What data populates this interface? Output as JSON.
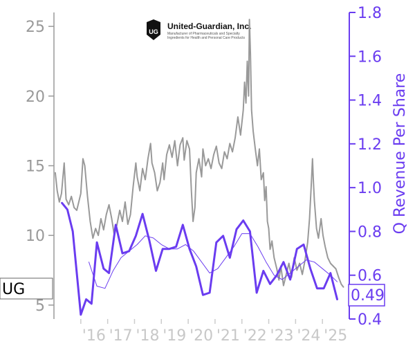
{
  "logo": {
    "company": "United-Guardian, Inc.",
    "tagline_1": "Manufacturer of Pharmaceuticals and Specialty",
    "tagline_2": "Ingredients for Health and Personal Care Products",
    "mark_text": "UG"
  },
  "ticker": "UG",
  "latest_value_label": "0.49",
  "colors": {
    "price": "#999999",
    "revenue": "#6a3cf0",
    "left_axis": "#999999",
    "right_axis": "#6a3cf0",
    "x_axis_labels": "#c8c8c8"
  },
  "chart_data": {
    "type": "line",
    "grid": false,
    "x_tick_labels": [
      "'16",
      "'17",
      "'18",
      "'19",
      "'20",
      "'21",
      "'22",
      "'23",
      "'24",
      "'25"
    ],
    "x_ticks_years": [
      2016,
      2017,
      2018,
      2019,
      2020,
      2021,
      2022,
      2023,
      2024,
      2025
    ],
    "xlim": [
      2015.0,
      2026.0
    ],
    "left_axis": {
      "label": "",
      "ticks": [
        5,
        10,
        15,
        20,
        25
      ],
      "ylim": [
        4.0,
        26.0
      ]
    },
    "right_axis": {
      "label": "Q Revenue Per Share",
      "ticks": [
        0.4,
        0.6,
        0.8,
        1.0,
        1.2,
        1.4,
        1.6,
        1.8
      ],
      "ylim": [
        0.4,
        1.8
      ]
    },
    "series": [
      {
        "axis": "left",
        "style": "price",
        "points": [
          [
            2015.05,
            14.5
          ],
          [
            2015.12,
            13.2
          ],
          [
            2015.2,
            12.4
          ],
          [
            2015.28,
            13.0
          ],
          [
            2015.38,
            15.2
          ],
          [
            2015.45,
            12.6
          ],
          [
            2015.55,
            12.2
          ],
          [
            2015.65,
            12.8
          ],
          [
            2015.75,
            12.0
          ],
          [
            2015.85,
            11.8
          ],
          [
            2016.0,
            13.0
          ],
          [
            2016.08,
            15.5
          ],
          [
            2016.15,
            15.0
          ],
          [
            2016.25,
            12.8
          ],
          [
            2016.35,
            11.0
          ],
          [
            2016.45,
            9.8
          ],
          [
            2016.55,
            10.5
          ],
          [
            2016.65,
            10.0
          ],
          [
            2016.75,
            11.2
          ],
          [
            2016.85,
            10.4
          ],
          [
            2016.95,
            11.5
          ],
          [
            2017.05,
            12.2
          ],
          [
            2017.15,
            11.2
          ],
          [
            2017.25,
            10.0
          ],
          [
            2017.35,
            10.8
          ],
          [
            2017.45,
            11.8
          ],
          [
            2017.55,
            11.0
          ],
          [
            2017.65,
            12.4
          ],
          [
            2017.75,
            10.8
          ],
          [
            2017.85,
            11.5
          ],
          [
            2017.95,
            13.5
          ],
          [
            2018.05,
            15.2
          ],
          [
            2018.1,
            14.2
          ],
          [
            2018.2,
            13.2
          ],
          [
            2018.3,
            14.8
          ],
          [
            2018.4,
            14.0
          ],
          [
            2018.5,
            15.5
          ],
          [
            2018.6,
            16.6
          ],
          [
            2018.65,
            15.2
          ],
          [
            2018.75,
            14.5
          ],
          [
            2018.85,
            13.2
          ],
          [
            2018.95,
            13.8
          ],
          [
            2019.05,
            15.2
          ],
          [
            2019.1,
            14.0
          ],
          [
            2019.2,
            15.8
          ],
          [
            2019.3,
            16.5
          ],
          [
            2019.4,
            15.6
          ],
          [
            2019.5,
            16.8
          ],
          [
            2019.6,
            15.0
          ],
          [
            2019.7,
            16.5
          ],
          [
            2019.8,
            17.0
          ],
          [
            2019.85,
            15.4
          ],
          [
            2019.95,
            16.8
          ],
          [
            2020.05,
            16.2
          ],
          [
            2020.12,
            13.2
          ],
          [
            2020.18,
            11.0
          ],
          [
            2020.25,
            12.0
          ],
          [
            2020.3,
            14.5
          ],
          [
            2020.4,
            15.5
          ],
          [
            2020.5,
            14.2
          ],
          [
            2020.55,
            16.2
          ],
          [
            2020.65,
            15.0
          ],
          [
            2020.75,
            15.5
          ],
          [
            2020.85,
            14.8
          ],
          [
            2020.95,
            15.8
          ],
          [
            2021.05,
            16.4
          ],
          [
            2021.15,
            15.2
          ],
          [
            2021.25,
            14.8
          ],
          [
            2021.35,
            16.0
          ],
          [
            2021.45,
            15.5
          ],
          [
            2021.55,
            16.6
          ],
          [
            2021.65,
            16.0
          ],
          [
            2021.75,
            17.0
          ],
          [
            2021.85,
            18.5
          ],
          [
            2021.95,
            17.2
          ],
          [
            2022.05,
            19.0
          ],
          [
            2022.1,
            21.0
          ],
          [
            2022.15,
            19.5
          ],
          [
            2022.2,
            22.5
          ],
          [
            2022.25,
            20.0
          ],
          [
            2022.28,
            25.5
          ],
          [
            2022.32,
            23.0
          ],
          [
            2022.36,
            19.0
          ],
          [
            2022.42,
            17.5
          ],
          [
            2022.5,
            16.2
          ],
          [
            2022.58,
            15.0
          ],
          [
            2022.65,
            16.2
          ],
          [
            2022.72,
            14.0
          ],
          [
            2022.8,
            14.5
          ],
          [
            2022.85,
            12.5
          ],
          [
            2022.9,
            13.5
          ],
          [
            2022.95,
            11.0
          ],
          [
            2023.0,
            10.5
          ],
          [
            2023.05,
            9.0
          ],
          [
            2023.12,
            9.6
          ],
          [
            2023.2,
            8.4
          ],
          [
            2023.3,
            7.6
          ],
          [
            2023.38,
            6.8
          ],
          [
            2023.45,
            7.8
          ],
          [
            2023.55,
            6.4
          ],
          [
            2023.65,
            7.2
          ],
          [
            2023.75,
            8.0
          ],
          [
            2023.85,
            7.0
          ],
          [
            2023.95,
            8.4
          ],
          [
            2024.05,
            7.5
          ],
          [
            2024.15,
            8.0
          ],
          [
            2024.25,
            7.2
          ],
          [
            2024.35,
            8.2
          ],
          [
            2024.45,
            9.5
          ],
          [
            2024.52,
            11.2
          ],
          [
            2024.58,
            13.5
          ],
          [
            2024.63,
            15.5
          ],
          [
            2024.66,
            14.0
          ],
          [
            2024.7,
            12.5
          ],
          [
            2024.78,
            10.5
          ],
          [
            2024.85,
            9.8
          ],
          [
            2024.95,
            11.2
          ],
          [
            2025.02,
            10.0
          ],
          [
            2025.1,
            9.2
          ],
          [
            2025.2,
            8.4
          ],
          [
            2025.3,
            8.0
          ],
          [
            2025.4,
            7.8
          ],
          [
            2025.5,
            7.6
          ],
          [
            2025.6,
            7.0
          ],
          [
            2025.7,
            6.5
          ],
          [
            2025.78,
            6.3
          ]
        ]
      },
      {
        "axis": "right",
        "style": "revenue",
        "points": [
          [
            2015.3,
            0.93
          ],
          [
            2015.5,
            0.9
          ],
          [
            2015.7,
            0.8
          ],
          [
            2016.0,
            0.42
          ],
          [
            2016.2,
            0.49
          ],
          [
            2016.4,
            0.47
          ],
          [
            2016.6,
            0.75
          ],
          [
            2016.85,
            0.63
          ],
          [
            2017.05,
            0.61
          ],
          [
            2017.3,
            0.83
          ],
          [
            2017.55,
            0.7
          ],
          [
            2017.8,
            0.71
          ],
          [
            2018.05,
            0.78
          ],
          [
            2018.3,
            0.88
          ],
          [
            2018.55,
            0.76
          ],
          [
            2018.8,
            0.62
          ],
          [
            2019.05,
            0.72
          ],
          [
            2019.3,
            0.72
          ],
          [
            2019.55,
            0.73
          ],
          [
            2019.8,
            0.83
          ],
          [
            2020.05,
            0.72
          ],
          [
            2020.3,
            0.64
          ],
          [
            2020.55,
            0.51
          ],
          [
            2020.8,
            0.52
          ],
          [
            2021.05,
            0.75
          ],
          [
            2021.3,
            0.78
          ],
          [
            2021.55,
            0.68
          ],
          [
            2021.8,
            0.81
          ],
          [
            2022.05,
            0.85
          ],
          [
            2022.3,
            0.8
          ],
          [
            2022.55,
            0.52
          ],
          [
            2022.8,
            0.62
          ],
          [
            2023.05,
            0.56
          ],
          [
            2023.3,
            0.6
          ],
          [
            2023.55,
            0.66
          ],
          [
            2023.8,
            0.58
          ],
          [
            2024.05,
            0.72
          ],
          [
            2024.3,
            0.74
          ],
          [
            2024.55,
            0.63
          ],
          [
            2024.8,
            0.54
          ],
          [
            2025.05,
            0.54
          ],
          [
            2025.3,
            0.61
          ],
          [
            2025.55,
            0.49
          ]
        ]
      },
      {
        "axis": "right",
        "style": "revenue-average",
        "points": [
          [
            2016.3,
            0.66
          ],
          [
            2016.6,
            0.55
          ],
          [
            2016.9,
            0.54
          ],
          [
            2017.2,
            0.62
          ],
          [
            2017.5,
            0.68
          ],
          [
            2017.8,
            0.71
          ],
          [
            2018.1,
            0.74
          ],
          [
            2018.4,
            0.78
          ],
          [
            2018.7,
            0.77
          ],
          [
            2019.0,
            0.74
          ],
          [
            2019.3,
            0.72
          ],
          [
            2019.6,
            0.72
          ],
          [
            2019.9,
            0.74
          ],
          [
            2020.2,
            0.71
          ],
          [
            2020.5,
            0.66
          ],
          [
            2020.8,
            0.61
          ],
          [
            2021.1,
            0.63
          ],
          [
            2021.4,
            0.68
          ],
          [
            2021.7,
            0.73
          ],
          [
            2022.0,
            0.79
          ],
          [
            2022.3,
            0.79
          ],
          [
            2022.6,
            0.73
          ],
          [
            2022.9,
            0.66
          ],
          [
            2023.2,
            0.6
          ],
          [
            2023.5,
            0.58
          ],
          [
            2023.8,
            0.61
          ],
          [
            2024.1,
            0.64
          ],
          [
            2024.4,
            0.67
          ],
          [
            2024.7,
            0.66
          ],
          [
            2025.0,
            0.63
          ],
          [
            2025.3,
            0.6
          ],
          [
            2025.55,
            0.57
          ]
        ]
      }
    ]
  }
}
